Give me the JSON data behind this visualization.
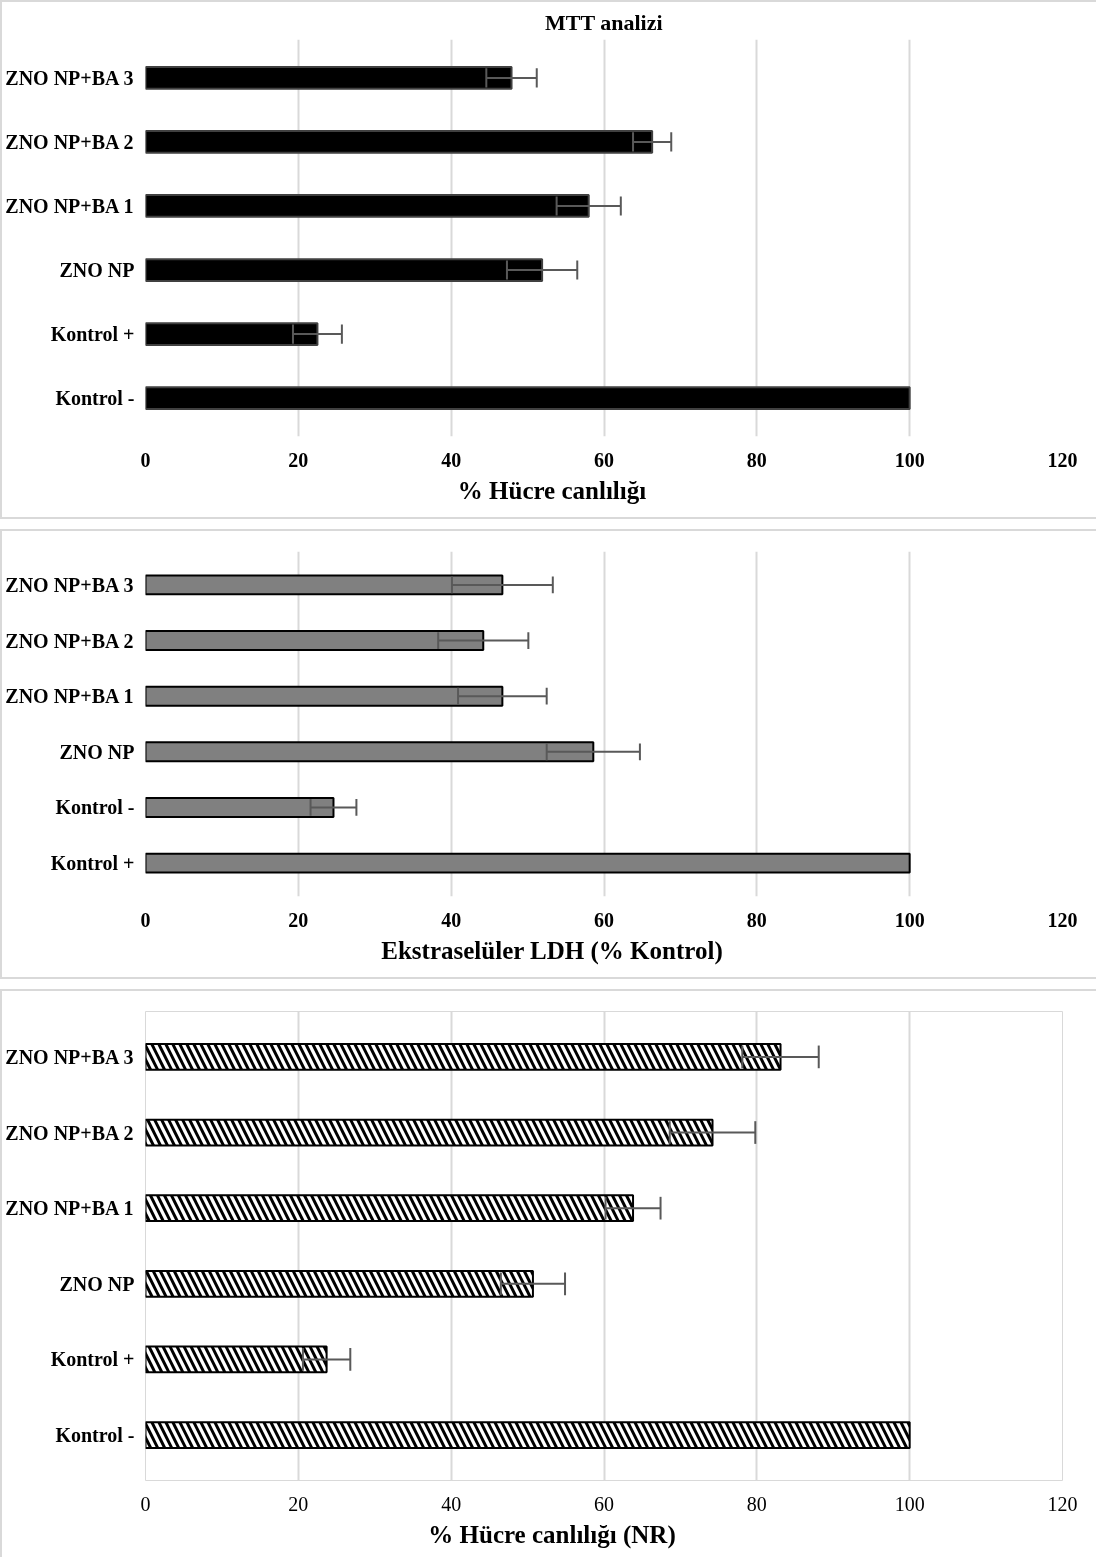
{
  "chart_data": [
    {
      "type": "bar",
      "orientation": "horizontal",
      "title": "MTT analizi",
      "xlabel": "% Hücre canlılığı",
      "categories": [
        "ZNO NP+BA 3",
        "ZNO NP+BA 2",
        "ZNO NP+BA 1",
        "ZNO NP",
        "Kontrol +",
        "Kontrol -"
      ],
      "values": [
        47.9,
        66.3,
        58.0,
        51.9,
        22.5,
        100
      ],
      "errors": [
        3.3,
        2.5,
        4.2,
        4.6,
        3.2,
        null
      ],
      "color": "#000000",
      "xlim": [
        0,
        120
      ],
      "xticks": [
        0,
        20,
        40,
        60,
        80,
        100,
        120
      ],
      "grid": "x"
    },
    {
      "type": "bar",
      "orientation": "horizontal",
      "xlabel": "Ekstraselüler LDH (% Kontrol)",
      "categories": [
        "ZNO NP+BA 3",
        "ZNO NP+BA 2",
        "ZNO NP+BA 1",
        "ZNO NP",
        "Kontrol -",
        "Kontrol +"
      ],
      "values": [
        46.7,
        44.2,
        46.7,
        58.6,
        24.6,
        100
      ],
      "errors": [
        6.6,
        5.9,
        5.8,
        6.1,
        3.0,
        null
      ],
      "color": "#808080",
      "xlim": [
        0,
        120
      ],
      "xticks": [
        0,
        20,
        40,
        60,
        80,
        100,
        120
      ],
      "grid": "x"
    },
    {
      "type": "bar",
      "orientation": "horizontal",
      "xlabel": "% Hücre canlılığı (NR)",
      "categories": [
        "ZNO NP+BA 3",
        "ZNO NP+BA 2",
        "ZNO NP+BA 1",
        "ZNO NP",
        "Kontrol +",
        "Kontrol -"
      ],
      "values": [
        83.1,
        74.2,
        63.8,
        50.7,
        23.7,
        100
      ],
      "errors": [
        5.0,
        5.6,
        3.6,
        4.2,
        3.1,
        null
      ],
      "color": "#000000",
      "xlim": [
        0,
        120
      ],
      "xticks": [
        0,
        20,
        40,
        60,
        80,
        100,
        120
      ],
      "grid": "x"
    }
  ]
}
